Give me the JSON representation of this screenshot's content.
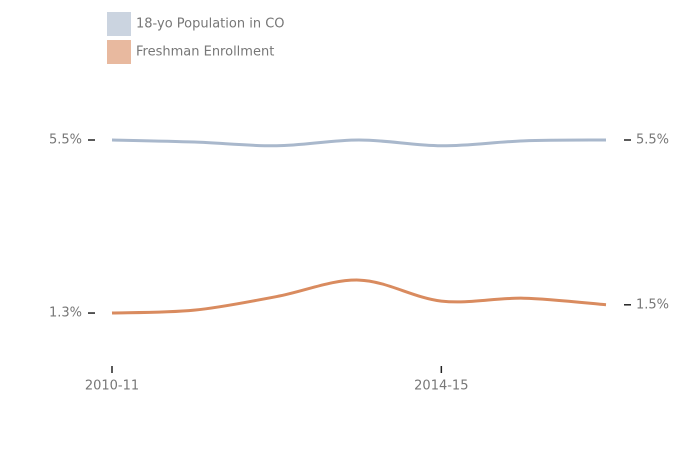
{
  "chart_data": {
    "type": "line",
    "categories": [
      "2010-11",
      null,
      null,
      null,
      "2014-15",
      null,
      null
    ],
    "series": [
      {
        "name": "18-yo Population in CO",
        "color": "#a9b8cc",
        "values": [
          5.5,
          5.45,
          5.36,
          5.5,
          5.36,
          5.48,
          5.5
        ]
      },
      {
        "name": "Freshman Enrollment",
        "color": "#d98b5f",
        "values": [
          1.3,
          1.37,
          1.7,
          2.1,
          1.59,
          1.66,
          1.5
        ],
        "axis": "y2"
      }
    ],
    "ylim": [
      0,
      7
    ],
    "yticks": [
      {
        "value": 5.5,
        "label": "5.5%"
      },
      {
        "value": 1.3,
        "label": "1.3%"
      }
    ],
    "y2lim": [
      0,
      7
    ],
    "y2ticks": [
      {
        "value": 5.5,
        "label": "5.5%"
      },
      {
        "value": 1.5,
        "label": "1.5%"
      }
    ],
    "legend": "top-left"
  }
}
